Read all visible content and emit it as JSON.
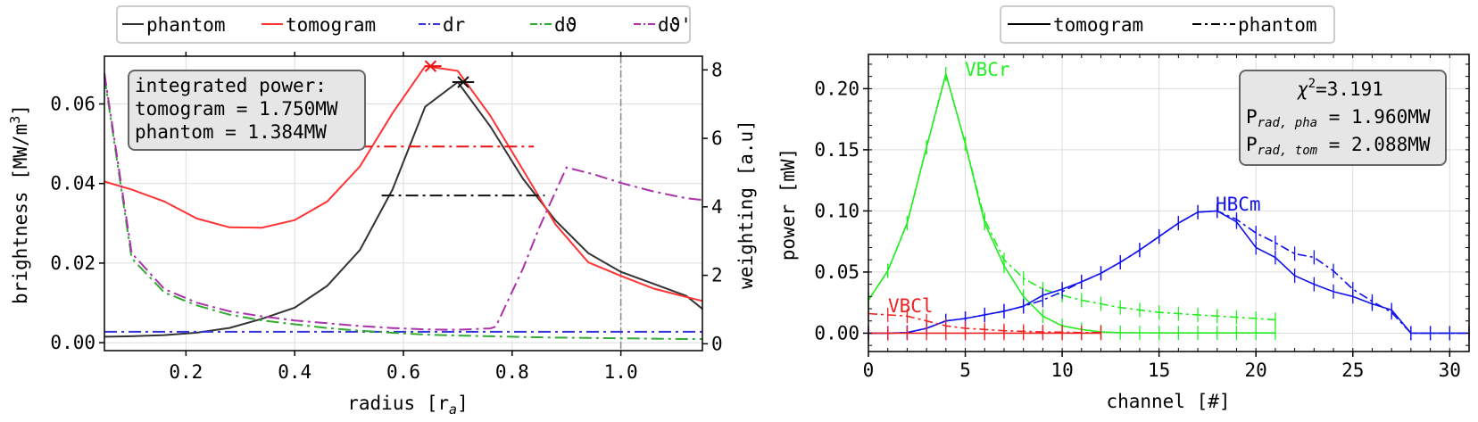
{
  "left_chart_title": "",
  "right_chart_title": "",
  "left": {
    "legend": [
      {
        "label": "phantom",
        "color": "#333333",
        "style": "solid"
      },
      {
        "label": "tomogram",
        "color": "#ff3333",
        "style": "solid"
      },
      {
        "label": "dr",
        "color": "#3333dd",
        "style": "dashdot"
      },
      {
        "label": "dϑ",
        "color": "#33aa33",
        "style": "dashdot"
      },
      {
        "label": "dϑ'",
        "color": "#aa33aa",
        "style": "dashdot"
      }
    ],
    "info_box": [
      "integrated power:",
      "tomogram = 1.750MW",
      "phantom = 1.384MW"
    ],
    "xlabel": "radius [r",
    "xlabel_sub": "a",
    "xlabel_end": "]",
    "ylabel": "brightness [MW/m",
    "ylabel_sup": "3",
    "ylabel_end": "]",
    "y2label": "weighting [a.u]"
  },
  "right": {
    "legend": [
      {
        "label": "tomogram",
        "style": "solid"
      },
      {
        "label": "phantom",
        "style": "dashdot"
      }
    ],
    "info_box": {
      "chi": "χ",
      "chi_sup": "2",
      "chi_val": "=3.191",
      "p_pha": "P",
      "p_pha_sub": "rad, pha",
      "p_pha_val": " = 1.960MW",
      "p_tom": "P",
      "p_tom_sub": "rad, tom",
      "p_tom_val": " = 2.088MW"
    },
    "xlabel": "channel [#]",
    "ylabel": "power [mW]",
    "annotations": [
      {
        "text": "VBCr",
        "color": "#22ee22"
      },
      {
        "text": "HBCm",
        "color": "#1111ee"
      },
      {
        "text": "VBCl",
        "color": "#ee2222"
      }
    ]
  },
  "chart_data": [
    {
      "type": "line",
      "xlim": [
        0.05,
        1.15
      ],
      "ylim": [
        -0.002,
        0.072
      ],
      "y2lim": [
        -0.2,
        8.4
      ],
      "xticks": [
        "0.2",
        "0.4",
        "0.6",
        "0.8",
        "1.0"
      ],
      "yticks": [
        "0.00",
        "0.02",
        "0.04",
        "0.06"
      ],
      "y2ticks": [
        "0",
        "2",
        "4",
        "6",
        "8"
      ],
      "grid": true,
      "legend_position": "top",
      "series": [
        {
          "name": "phantom",
          "axis": "left",
          "color": "#333333",
          "x": [
            0.05,
            0.1,
            0.16,
            0.22,
            0.28,
            0.34,
            0.4,
            0.46,
            0.52,
            0.58,
            0.64,
            0.7,
            0.76,
            0.82,
            0.88,
            0.94,
            1.0,
            1.06,
            1.12,
            1.15
          ],
          "y": [
            0.0015,
            0.0016,
            0.0019,
            0.0025,
            0.0037,
            0.006,
            0.0088,
            0.0143,
            0.0233,
            0.0385,
            0.0593,
            0.0655,
            0.0543,
            0.0412,
            0.0307,
            0.0225,
            0.0178,
            0.0148,
            0.0118,
            0.0085
          ]
        },
        {
          "name": "tomogram",
          "axis": "left",
          "color": "#ff3333",
          "x": [
            0.05,
            0.1,
            0.16,
            0.22,
            0.28,
            0.34,
            0.4,
            0.46,
            0.52,
            0.58,
            0.64,
            0.7,
            0.76,
            0.82,
            0.88,
            0.94,
            1.0,
            1.06,
            1.12,
            1.15
          ],
          "y": [
            0.0405,
            0.0385,
            0.0355,
            0.0312,
            0.029,
            0.0289,
            0.0308,
            0.0355,
            0.0443,
            0.0577,
            0.0695,
            0.0683,
            0.057,
            0.0434,
            0.0297,
            0.0202,
            0.0168,
            0.0136,
            0.0115,
            0.0105
          ]
        },
        {
          "name": "dr",
          "axis": "right",
          "color": "#3333dd",
          "dash": "dashdot",
          "x": [
            0.05,
            1.15
          ],
          "y": [
            0.35,
            0.35
          ]
        },
        {
          "name": "dϑ",
          "axis": "right",
          "color": "#33aa33",
          "dash": "dashdot",
          "x": [
            0.05,
            0.1,
            0.16,
            0.22,
            0.28,
            0.34,
            0.4,
            0.46,
            0.52,
            0.58,
            0.64,
            0.7,
            0.76,
            0.82,
            0.88,
            0.94,
            1.0,
            1.06,
            1.12,
            1.15
          ],
          "y": [
            7.8,
            2.5,
            1.5,
            1.12,
            0.85,
            0.68,
            0.57,
            0.46,
            0.38,
            0.32,
            0.27,
            0.24,
            0.22,
            0.2,
            0.18,
            0.17,
            0.16,
            0.15,
            0.14,
            0.14
          ]
        },
        {
          "name": "dϑ'",
          "axis": "right",
          "color": "#aa33aa",
          "dash": "dashdot",
          "x": [
            0.05,
            0.1,
            0.16,
            0.22,
            0.28,
            0.34,
            0.4,
            0.46,
            0.52,
            0.58,
            0.64,
            0.7,
            0.76,
            0.77,
            0.82,
            0.85,
            0.9,
            0.95,
            1.0,
            1.06,
            1.12,
            1.15
          ],
          "y": [
            7.9,
            2.65,
            1.6,
            1.2,
            0.95,
            0.8,
            0.68,
            0.6,
            0.52,
            0.46,
            0.42,
            0.41,
            0.45,
            0.5,
            2.2,
            3.4,
            5.15,
            4.95,
            4.7,
            4.45,
            4.25,
            4.2
          ]
        },
        {
          "name": "tomogram mean radius",
          "axis": "left",
          "color": "#ee1111",
          "dash": "dashdot",
          "x": [
            0.52,
            0.84
          ],
          "y": [
            0.0493,
            0.0493
          ]
        },
        {
          "name": "phantom mean radius",
          "axis": "left",
          "color": "#111111",
          "dash": "dashdot",
          "x": [
            0.56,
            0.86
          ],
          "y": [
            0.037,
            0.037
          ]
        }
      ],
      "markers": [
        {
          "name": "tomogram peak",
          "x": 0.65,
          "y": 0.0695,
          "color": "#ee1111",
          "errx": [
            0.64,
            0.67
          ]
        },
        {
          "name": "phantom peak",
          "x": 0.71,
          "y": 0.0655,
          "color": "#111111",
          "errx": [
            0.69,
            0.73
          ]
        }
      ],
      "vline": {
        "x": 1.0,
        "color": "#888888"
      }
    },
    {
      "type": "line",
      "xlim": [
        0,
        31
      ],
      "ylim": [
        -0.015,
        0.228
      ],
      "xticks": [
        "0",
        "5",
        "10",
        "15",
        "20",
        "25",
        "30"
      ],
      "yticks": [
        "0.00",
        "0.05",
        "0.10",
        "0.15",
        "0.20"
      ],
      "grid": true,
      "legend_position": "top",
      "series": [
        {
          "name": "VBCr tomogram",
          "color": "#22ee22",
          "style": "solid",
          "x": [
            0,
            1,
            2,
            3,
            4,
            5,
            6,
            7,
            8,
            9,
            10,
            11,
            12,
            13,
            14,
            15,
            16,
            17,
            18,
            19,
            20,
            21
          ],
          "y": [
            0.027,
            0.051,
            0.09,
            0.152,
            0.212,
            0.155,
            0.09,
            0.055,
            0.03,
            0.014,
            0.006,
            0.003,
            0.001,
            0.0005,
            0.0003,
            0.0002,
            0.0002,
            0.0002,
            0.0002,
            0.0002,
            0.0002,
            0.0002
          ]
        },
        {
          "name": "VBCr phantom",
          "color": "#22ee22",
          "style": "dashdot",
          "x": [
            0,
            1,
            2,
            3,
            4,
            5,
            6,
            7,
            8,
            9,
            10,
            11,
            12,
            13,
            14,
            15,
            16,
            17,
            18,
            19,
            20,
            21
          ],
          "y": [
            0.027,
            0.051,
            0.09,
            0.152,
            0.212,
            0.155,
            0.093,
            0.06,
            0.045,
            0.036,
            0.031,
            0.027,
            0.024,
            0.021,
            0.019,
            0.017,
            0.016,
            0.015,
            0.014,
            0.013,
            0.012,
            0.011
          ]
        },
        {
          "name": "HBCm tomogram",
          "color": "#1111ee",
          "style": "solid",
          "x": [
            0,
            1,
            2,
            3,
            4,
            5,
            6,
            7,
            8,
            9,
            10,
            11,
            12,
            13,
            14,
            15,
            16,
            17,
            18,
            19,
            20,
            21,
            22,
            23,
            24,
            25,
            26,
            27,
            28,
            29,
            30,
            31
          ],
          "y": [
            0.0,
            0.0,
            0.0005,
            0.004,
            0.01,
            0.012,
            0.015,
            0.018,
            0.022,
            0.031,
            0.036,
            0.042,
            0.049,
            0.058,
            0.068,
            0.079,
            0.09,
            0.099,
            0.1,
            0.091,
            0.07,
            0.062,
            0.047,
            0.04,
            0.034,
            0.03,
            0.024,
            0.019,
            0.0,
            0.0,
            0.0,
            0.0
          ]
        },
        {
          "name": "HBCm phantom",
          "color": "#1111ee",
          "style": "dashdot",
          "x": [
            0,
            1,
            2,
            3,
            4,
            5,
            6,
            7,
            8,
            9,
            10,
            11,
            12,
            13,
            14,
            15,
            16,
            17,
            18,
            19,
            20,
            21,
            22,
            23,
            24,
            25,
            26,
            27,
            28,
            29,
            30,
            31
          ],
          "y": [
            0.0,
            0.0,
            0.0005,
            0.004,
            0.01,
            0.012,
            0.015,
            0.018,
            0.022,
            0.027,
            0.034,
            0.042,
            0.049,
            0.058,
            0.068,
            0.079,
            0.09,
            0.099,
            0.1,
            0.093,
            0.082,
            0.074,
            0.065,
            0.062,
            0.051,
            0.036,
            0.026,
            0.017,
            0.0,
            0.0,
            0.0,
            0.0
          ]
        },
        {
          "name": "VBCl tomogram",
          "color": "#ee2222",
          "style": "solid",
          "x": [
            0,
            1,
            2,
            3,
            4,
            5,
            6,
            7,
            8,
            9,
            10,
            11,
            12
          ],
          "y": [
            0.0,
            0.0,
            0.0,
            0.0,
            0.0,
            0.0,
            0.0,
            0.0,
            0.0,
            0.0,
            0.0,
            0.0,
            0.0
          ]
        },
        {
          "name": "VBCl phantom",
          "color": "#ee2222",
          "style": "dashdot",
          "x": [
            0,
            1,
            2,
            3,
            4,
            5,
            6,
            7,
            8,
            9,
            10,
            11,
            12
          ],
          "y": [
            0.016,
            0.015,
            0.014,
            0.01,
            0.006,
            0.004,
            0.003,
            0.002,
            0.0015,
            0.001,
            0.0008,
            0.0005,
            0.0005
          ]
        }
      ]
    }
  ]
}
